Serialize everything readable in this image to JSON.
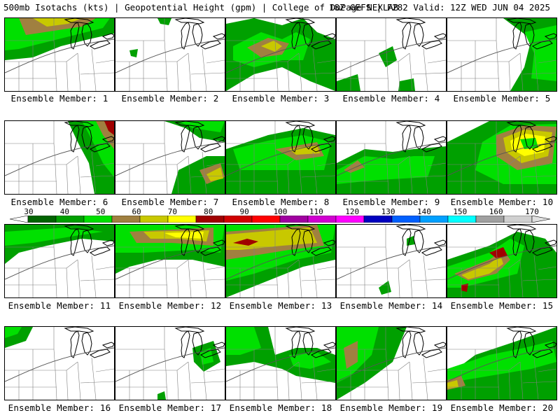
{
  "header": {
    "title_left": "500mb Isotachs (kts) | Geopotential Height (gpm) | College of DuPage NEXLAB",
    "title_right": "18Z GEFS | F282 Valid: 12Z WED JUN 04 2025"
  },
  "members": [
    "Ensemble Member: 1",
    "Ensemble Member: 2",
    "Ensemble Member: 3",
    "Ensemble Member: 4",
    "Ensemble Member: 5",
    "Ensemble Member: 6",
    "Ensemble Member: 7",
    "Ensemble Member: 8",
    "Ensemble Member: 9",
    "Ensemble Member: 10",
    "Ensemble Member: 11",
    "Ensemble Member: 12",
    "Ensemble Member: 13",
    "Ensemble Member: 14",
    "Ensemble Member: 15",
    "Ensemble Member: 16",
    "Ensemble Member: 17",
    "Ensemble Member: 18",
    "Ensemble Member: 19",
    "Ensemble Member: 20"
  ],
  "colorbar": {
    "labels": [
      "30",
      "40",
      "50",
      "60",
      "70",
      "80",
      "90",
      "100",
      "110",
      "120",
      "130",
      "140",
      "150",
      "160",
      "170"
    ],
    "colors": [
      "#006400",
      "#00a000",
      "#00e000",
      "#a08040",
      "#c8c800",
      "#ffff00",
      "#a00000",
      "#d00000",
      "#ff0000",
      "#a000a0",
      "#d000d0",
      "#ff00ff",
      "#0000c0",
      "#0060ff",
      "#00a0ff",
      "#00ffff",
      "#a0a0a0",
      "#d0d0d0"
    ]
  },
  "map_colors": {
    "green_dark": "#006400",
    "green_mid": "#00a000",
    "green_light": "#00e000",
    "tan": "#a08040",
    "olive": "#c8c800",
    "yellow": "#ffff00",
    "red": "#a00000"
  }
}
